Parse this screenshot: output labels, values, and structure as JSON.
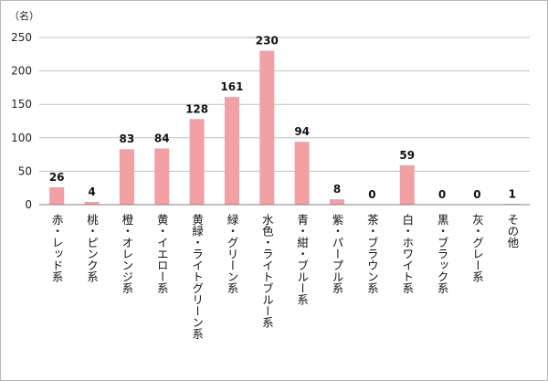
{
  "chart_data": {
    "type": "bar",
    "unit_label": "（名）",
    "categories": [
      "赤・レッド系",
      "桃・ピンク系",
      "橙・オレンジ系",
      "黄・イエロー系",
      "黄緑・ライトグリーン系",
      "緑・グリーン系",
      "水色・ライトブルー系",
      "青・紺・ブルー系",
      "紫・パープル系",
      "茶・ブラウン系",
      "白・ホワイト系",
      "黒・ブラック系",
      "灰・グレー系",
      "その他"
    ],
    "values": [
      26,
      4,
      83,
      84,
      128,
      161,
      230,
      94,
      8,
      0,
      59,
      0,
      0,
      1
    ],
    "ylim": [
      0,
      250
    ],
    "yticks": [
      0,
      50,
      100,
      150,
      200,
      250
    ],
    "grid": true,
    "bar_color": "#f2a0a4",
    "xlabel": "",
    "ylabel": ""
  }
}
